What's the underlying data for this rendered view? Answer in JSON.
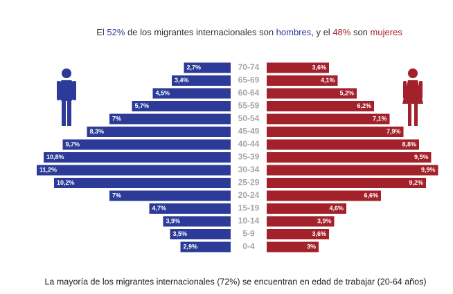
{
  "chart_data": {
    "type": "pyramid",
    "title_parts": [
      "El ",
      "52%",
      " de los migrantes internacionales son ",
      "hombres",
      ", y el ",
      "48%",
      " son ",
      "mujeres"
    ],
    "footer": "La mayoría de los migrantes internacionales (72%) se encuentran en edad de trabajar (20-64 años)",
    "categories": [
      "70-74",
      "65-69",
      "60-64",
      "55-59",
      "50-54",
      "45-49",
      "40-44",
      "35-39",
      "30-34",
      "25-29",
      "20-24",
      "15-19",
      "10-14",
      "5-9",
      "0-4"
    ],
    "series": [
      {
        "name": "hombres",
        "color": "#2b3b97",
        "values": [
          2.7,
          3.4,
          4.5,
          5.7,
          7,
          8.3,
          9.7,
          10.8,
          11.2,
          10.2,
          7,
          4.7,
          3.9,
          3.5,
          2.9
        ],
        "value_labels": [
          "2,7%",
          "3,4%",
          "4,5%",
          "5,7%",
          "7%",
          "8,3%",
          "9,7%",
          "10,8%",
          "11,2%",
          "10,2%",
          "7%",
          "4,7%",
          "3,9%",
          "3,5%",
          "2,9%"
        ]
      },
      {
        "name": "mujeres",
        "color": "#a3212b",
        "values": [
          3.6,
          4.1,
          5.2,
          6.2,
          7.1,
          7.9,
          8.8,
          9.5,
          9.9,
          9.2,
          6.6,
          4.6,
          3.9,
          3.6,
          3
        ],
        "value_labels": [
          "3,6%",
          "4,1%",
          "5,2%",
          "6,2%",
          "7,1%",
          "7,9%",
          "8,8%",
          "9,5%",
          "9,9%",
          "9,2%",
          "6,6%",
          "4,6%",
          "3,9%",
          "3,6%",
          "3%"
        ]
      }
    ]
  }
}
